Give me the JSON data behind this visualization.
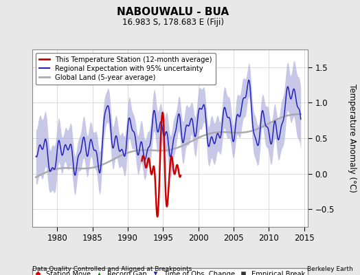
{
  "title": "NABOUWALU - BUA",
  "subtitle": "16.983 S, 178.683 E (Fiji)",
  "ylabel": "Temperature Anomaly (°C)",
  "xlabel_left": "Data Quality Controlled and Aligned at Breakpoints",
  "xlabel_right": "Berkeley Earth",
  "xlim": [
    1976.5,
    2015.5
  ],
  "ylim": [
    -0.75,
    1.75
  ],
  "yticks": [
    -0.5,
    0,
    0.5,
    1,
    1.5
  ],
  "xticks": [
    1980,
    1985,
    1990,
    1995,
    2000,
    2005,
    2010,
    2015
  ],
  "bg_color": "#e8e8e8",
  "plot_bg_color": "#ffffff",
  "regional_fill_color": "#aaaadd",
  "regional_line_color": "#2222bb",
  "station_color": "#cc0000",
  "global_color": "#aaaaaa",
  "legend1_items": [
    {
      "label": "This Temperature Station (12-month average)",
      "color": "#cc0000",
      "lw": 2.0
    },
    {
      "label": "Regional Expectation with 95% uncertainty",
      "color": "#2222bb",
      "lw": 1.5
    },
    {
      "label": "Global Land (5-year average)",
      "color": "#aaaaaa",
      "lw": 2.0
    }
  ],
  "legend2_items": [
    {
      "label": "Station Move",
      "marker": "D",
      "color": "#cc0000"
    },
    {
      "label": "Record Gap",
      "marker": "^",
      "color": "#008800"
    },
    {
      "label": "Time of Obs. Change",
      "marker": "v",
      "color": "#2222bb"
    },
    {
      "label": "Empirical Break",
      "marker": "s",
      "color": "#333333"
    }
  ]
}
